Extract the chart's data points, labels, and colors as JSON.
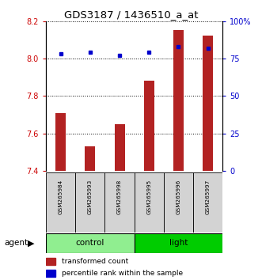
{
  "title": "GDS3187 / 1436510_a_at",
  "samples": [
    "GSM265984",
    "GSM265993",
    "GSM265998",
    "GSM265995",
    "GSM265996",
    "GSM265997"
  ],
  "groups": [
    "control",
    "control",
    "control",
    "light",
    "light",
    "light"
  ],
  "transformed_counts": [
    7.71,
    7.53,
    7.65,
    7.88,
    8.15,
    8.12
  ],
  "percentile_ranks": [
    78,
    79,
    77,
    79,
    83,
    82
  ],
  "ylim_left": [
    7.4,
    8.2
  ],
  "ylim_right": [
    0,
    100
  ],
  "yticks_left": [
    7.4,
    7.6,
    7.8,
    8.0,
    8.2
  ],
  "yticks_right": [
    0,
    25,
    50,
    75,
    100
  ],
  "bar_color": "#B22222",
  "dot_color": "#0000CC",
  "sample_bg": "#D3D3D3",
  "left_label_color": "#CC0000",
  "right_label_color": "#0000CC",
  "bar_width": 0.35,
  "group_labels": [
    "control",
    "light"
  ],
  "group_colors": [
    "#90EE90",
    "#00CC00"
  ],
  "n_control": 3,
  "n_light": 3
}
